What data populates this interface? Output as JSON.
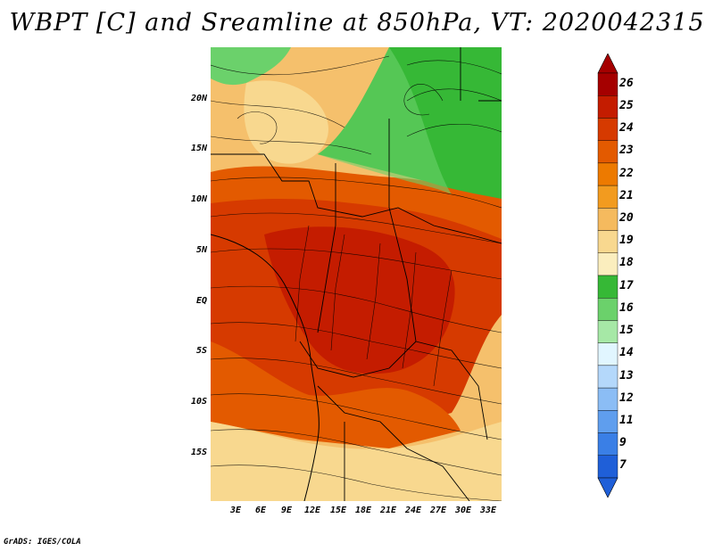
{
  "title": "WBPT [C] and Sreamline at 850hPa, VT: 2020042315",
  "footer": "GrADS: IGES/COLA",
  "map": {
    "y_axis_labels": [
      "20N",
      "15N",
      "10N",
      "5N",
      "EQ",
      "5S",
      "10S",
      "15S"
    ],
    "x_axis_labels": [
      "3E",
      "6E",
      "9E",
      "12E",
      "15E",
      "18E",
      "21E",
      "24E",
      "27E",
      "30E",
      "33E"
    ]
  },
  "colorbar": {
    "labels": [
      "26",
      "25",
      "24",
      "23",
      "22",
      "21",
      "20",
      "19",
      "18",
      "17",
      "16",
      "15",
      "14",
      "13",
      "12",
      "11",
      "9",
      "7"
    ],
    "colors": [
      "#a50000",
      "#c41c00",
      "#d63a00",
      "#e35a00",
      "#ed7a00",
      "#f29b1f",
      "#f5ba5e",
      "#f8d88f",
      "#fbeebe",
      "#36b836",
      "#6bd16b",
      "#a6e8a6",
      "#e1f6ff",
      "#b4d8fb",
      "#8bbdf5",
      "#5f9eee",
      "#3a7fe6",
      "#1f5fd8"
    ]
  }
}
